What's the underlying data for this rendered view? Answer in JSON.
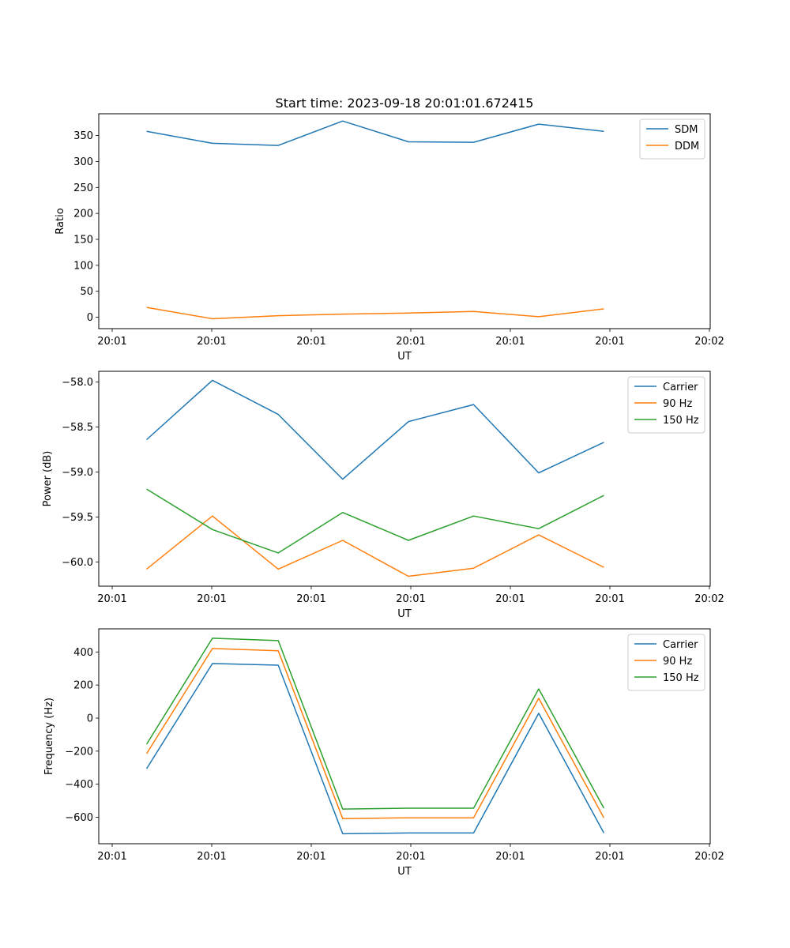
{
  "chart_data": [
    {
      "type": "line",
      "title": "Start time: 2023-09-18 20:01:01.672415",
      "xlabel": "UT",
      "ylabel": "Ratio",
      "x_tick_labels": [
        "20:01",
        "20:01",
        "20:01",
        "20:01",
        "20:01",
        "20:01",
        "20:02"
      ],
      "x_range": [
        -0.2,
        9.0
      ],
      "x": [
        0.52,
        1.51,
        2.5,
        3.47,
        4.46,
        5.44,
        6.42,
        7.4
      ],
      "ylim": [
        -22,
        392
      ],
      "y_ticks": [
        0,
        50,
        100,
        150,
        200,
        250,
        300,
        350
      ],
      "y_tick_labels": [
        "0",
        "50",
        "100",
        "150",
        "200",
        "250",
        "300",
        "350"
      ],
      "legend_position": "top-right",
      "grid": false,
      "series": [
        {
          "name": "SDM",
          "color": "#1f77b4",
          "values": [
            358,
            335,
            331,
            378,
            338,
            337,
            372,
            358
          ]
        },
        {
          "name": "DDM",
          "color": "#ff7f0e",
          "values": [
            19,
            -3,
            3,
            6,
            8,
            11,
            1,
            16
          ]
        }
      ]
    },
    {
      "type": "line",
      "title": "",
      "xlabel": "UT",
      "ylabel": "Power (dB)",
      "x_tick_labels": [
        "20:01",
        "20:01",
        "20:01",
        "20:01",
        "20:01",
        "20:01",
        "20:02"
      ],
      "x_range": [
        -0.2,
        9.0
      ],
      "x": [
        0.52,
        1.51,
        2.5,
        3.47,
        4.46,
        5.44,
        6.42,
        7.4
      ],
      "ylim": [
        -60.27,
        -57.88
      ],
      "y_ticks": [
        -60.0,
        -59.5,
        -59.0,
        -58.5,
        -58.0
      ],
      "y_tick_labels": [
        "−60.0",
        "−59.5",
        "−59.0",
        "−58.5",
        "−58.0"
      ],
      "legend_position": "top-right",
      "grid": false,
      "series": [
        {
          "name": "Carrier",
          "color": "#1f77b4",
          "values": [
            -58.64,
            -57.98,
            -58.36,
            -59.08,
            -58.44,
            -58.25,
            -59.01,
            -58.67
          ]
        },
        {
          "name": "90 Hz",
          "color": "#ff7f0e",
          "values": [
            -60.08,
            -59.49,
            -60.08,
            -59.76,
            -60.16,
            -60.07,
            -59.7,
            -60.06
          ]
        },
        {
          "name": "150 Hz",
          "color": "#2ca02c",
          "values": [
            -59.19,
            -59.64,
            -59.9,
            -59.45,
            -59.76,
            -59.49,
            -59.63,
            -59.26
          ]
        }
      ]
    },
    {
      "type": "line",
      "title": "",
      "xlabel": "UT",
      "ylabel": "Frequency (Hz)",
      "x_tick_labels": [
        "20:01",
        "20:01",
        "20:01",
        "20:01",
        "20:01",
        "20:01",
        "20:02"
      ],
      "x_range": [
        -0.2,
        9.0
      ],
      "x": [
        0.52,
        1.51,
        2.5,
        3.47,
        4.46,
        5.44,
        6.42,
        7.4
      ],
      "ylim": [
        -760,
        540
      ],
      "y_ticks": [
        -600,
        -400,
        -200,
        0,
        200,
        400
      ],
      "y_tick_labels": [
        "−600",
        "−400",
        "−200",
        "0",
        "200",
        "400"
      ],
      "legend_position": "top-right",
      "grid": false,
      "series": [
        {
          "name": "Carrier",
          "color": "#1f77b4",
          "values": [
            -306,
            330,
            320,
            -700,
            -695,
            -695,
            29,
            -695
          ]
        },
        {
          "name": "90 Hz",
          "color": "#ff7f0e",
          "values": [
            -215,
            421,
            407,
            -608,
            -603,
            -603,
            120,
            -603
          ]
        },
        {
          "name": "150 Hz",
          "color": "#2ca02c",
          "values": [
            -158,
            483,
            469,
            -550,
            -545,
            -545,
            177,
            -545
          ]
        }
      ]
    }
  ]
}
